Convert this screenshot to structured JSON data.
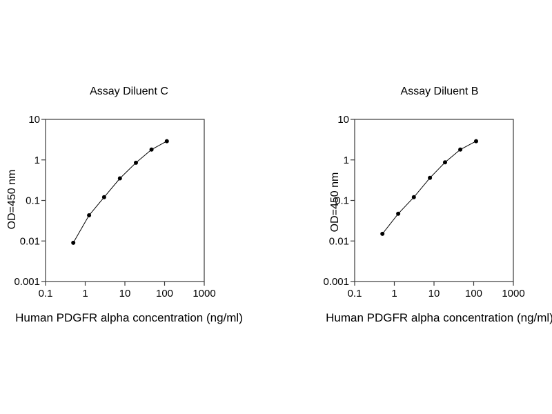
{
  "chart_data": [
    {
      "type": "line",
      "title": "Assay Diluent C",
      "xlabel": "Human PDGFR alpha concentration (ng/ml)",
      "ylabel": "OD=450 nm",
      "xscale": "log",
      "yscale": "log",
      "xlim": [
        0.1,
        1000
      ],
      "ylim": [
        0.001,
        10
      ],
      "x_tick_labels": [
        "0.1",
        "1",
        "10",
        "100",
        "1000"
      ],
      "y_tick_labels": [
        "10",
        "1",
        "0.1",
        "0.01",
        "0.001"
      ],
      "grid": false,
      "legend": false,
      "marker": "filled-circle",
      "line_color": "#000000",
      "marker_color": "#000000",
      "text_color": "#000000",
      "background_color": "#ffffff",
      "series": [
        {
          "name": "standard-curve",
          "x": [
            0.5,
            1.25,
            3,
            7.5,
            19,
            47,
            114
          ],
          "y": [
            0.009,
            0.043,
            0.12,
            0.35,
            0.85,
            1.8,
            2.9
          ]
        }
      ]
    },
    {
      "type": "line",
      "title": "Assay Diluent B",
      "xlabel": "Human PDGFR alpha concentration (ng/ml)",
      "ylabel": "OD=450 nm",
      "xscale": "log",
      "yscale": "log",
      "xlim": [
        0.1,
        1000
      ],
      "ylim": [
        0.001,
        10
      ],
      "x_tick_labels": [
        "0.1",
        "1",
        "10",
        "100",
        "1000"
      ],
      "y_tick_labels": [
        "10",
        "1",
        "0.1",
        "0.01",
        "0.001"
      ],
      "grid": false,
      "legend": false,
      "marker": "filled-circle",
      "line_color": "#000000",
      "marker_color": "#000000",
      "text_color": "#000000",
      "background_color": "#ffffff",
      "series": [
        {
          "name": "standard-curve",
          "x": [
            0.5,
            1.25,
            3.1,
            7.9,
            19,
            46,
            115
          ],
          "y": [
            0.015,
            0.047,
            0.12,
            0.36,
            0.87,
            1.8,
            2.9
          ]
        }
      ]
    }
  ]
}
